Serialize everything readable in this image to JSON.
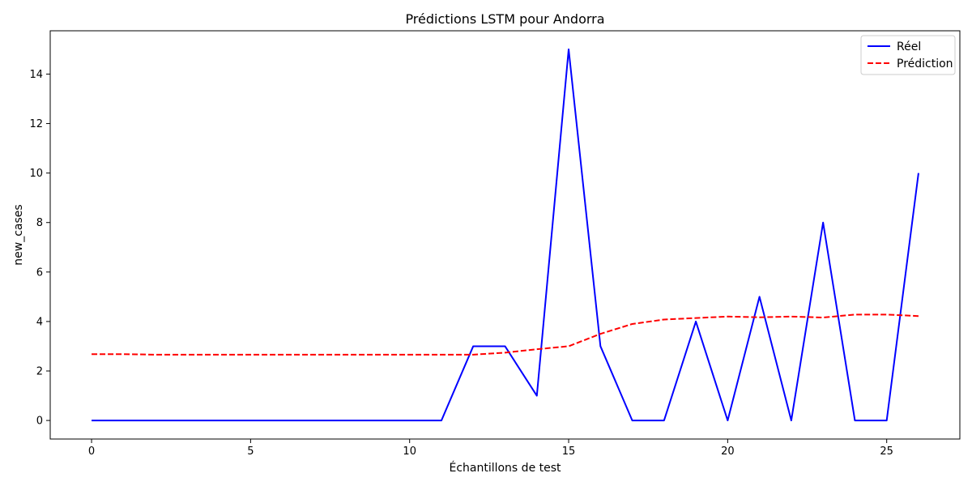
{
  "chart_data": {
    "type": "line",
    "title": "Prédictions LSTM pour Andorra",
    "xlabel": "Échantillons de test",
    "ylabel": "new_cases",
    "xlim": [
      -1.3,
      27.3
    ],
    "ylim": [
      -0.75,
      15.75
    ],
    "xticks": [
      0,
      5,
      10,
      15,
      20,
      25
    ],
    "yticks": [
      0,
      2,
      4,
      6,
      8,
      10,
      12,
      14
    ],
    "grid": false,
    "legend_position": "top-right",
    "x": [
      0,
      1,
      2,
      3,
      4,
      5,
      6,
      7,
      8,
      9,
      10,
      11,
      12,
      13,
      14,
      15,
      16,
      17,
      18,
      19,
      20,
      21,
      22,
      23,
      24,
      25,
      26
    ],
    "series": [
      {
        "name": "Réel",
        "color": "#0000ff",
        "style": "solid",
        "values": [
          0,
          0,
          0,
          0,
          0,
          0,
          0,
          0,
          0,
          0,
          0,
          0,
          3,
          3,
          1,
          15,
          3,
          0,
          0,
          4,
          0,
          5,
          0,
          8,
          0,
          0,
          10
        ]
      },
      {
        "name": "Prédiction",
        "color": "#ff0000",
        "style": "dashed",
        "values": [
          2.68,
          2.68,
          2.66,
          2.66,
          2.66,
          2.66,
          2.66,
          2.66,
          2.66,
          2.66,
          2.66,
          2.66,
          2.66,
          2.74,
          2.88,
          3.0,
          3.5,
          3.9,
          4.08,
          4.14,
          4.2,
          4.17,
          4.2,
          4.16,
          4.28,
          4.28,
          4.22
        ]
      }
    ]
  }
}
